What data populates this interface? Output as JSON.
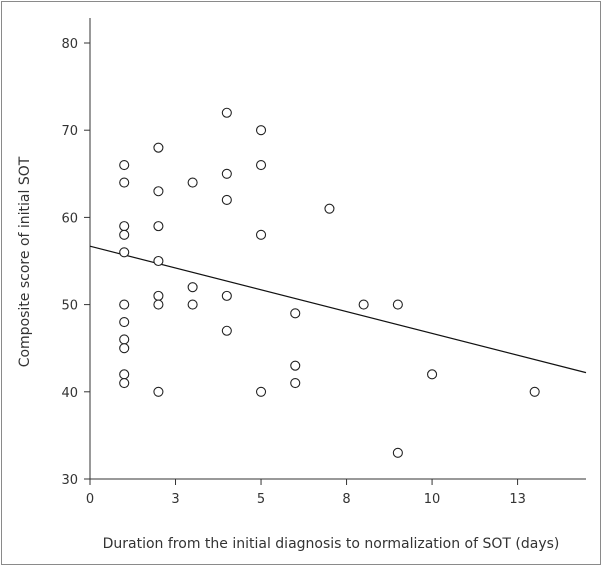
{
  "chart_data": {
    "type": "scatter",
    "xlabel": "Duration from the initial diagnosis to normalization of SOT (days)",
    "ylabel": "Composite score of initial SOT",
    "xlim": [
      0,
      14.5
    ],
    "ylim": [
      30,
      80
    ],
    "x_tick_values": [
      0,
      2.5,
      5,
      7.5,
      10,
      12.5
    ],
    "x_tick_labels": [
      "0",
      "3",
      "5",
      "8",
      "10",
      "13"
    ],
    "y_ticks": [
      30,
      40,
      50,
      60,
      70,
      80
    ],
    "grid": false,
    "legend": "none",
    "marker": "open-circle",
    "colors": {
      "marker": "#222222",
      "axis": "#333333",
      "line": "#111111",
      "border": "#8a8a8a"
    },
    "points": [
      {
        "x": 1,
        "y": 66
      },
      {
        "x": 1,
        "y": 64
      },
      {
        "x": 1,
        "y": 59
      },
      {
        "x": 1,
        "y": 58
      },
      {
        "x": 1,
        "y": 56
      },
      {
        "x": 1,
        "y": 50
      },
      {
        "x": 1,
        "y": 48
      },
      {
        "x": 1,
        "y": 46
      },
      {
        "x": 1,
        "y": 45
      },
      {
        "x": 1,
        "y": 42
      },
      {
        "x": 1,
        "y": 41
      },
      {
        "x": 2,
        "y": 68
      },
      {
        "x": 2,
        "y": 63
      },
      {
        "x": 2,
        "y": 59
      },
      {
        "x": 2,
        "y": 55
      },
      {
        "x": 2,
        "y": 51
      },
      {
        "x": 2,
        "y": 50
      },
      {
        "x": 2,
        "y": 40
      },
      {
        "x": 3,
        "y": 64
      },
      {
        "x": 3,
        "y": 52
      },
      {
        "x": 3,
        "y": 50
      },
      {
        "x": 4,
        "y": 72
      },
      {
        "x": 4,
        "y": 65
      },
      {
        "x": 4,
        "y": 62
      },
      {
        "x": 4,
        "y": 51
      },
      {
        "x": 4,
        "y": 47
      },
      {
        "x": 5,
        "y": 70
      },
      {
        "x": 5,
        "y": 66
      },
      {
        "x": 5,
        "y": 58
      },
      {
        "x": 5,
        "y": 40
      },
      {
        "x": 6,
        "y": 49
      },
      {
        "x": 6,
        "y": 43
      },
      {
        "x": 6,
        "y": 41
      },
      {
        "x": 7,
        "y": 61
      },
      {
        "x": 8,
        "y": 50
      },
      {
        "x": 9,
        "y": 50
      },
      {
        "x": 9,
        "y": 33
      },
      {
        "x": 10,
        "y": 42
      },
      {
        "x": 13,
        "y": 40
      }
    ],
    "regression_line": {
      "x": [
        0,
        14.5
      ],
      "y": [
        56.7,
        42.2
      ]
    }
  }
}
